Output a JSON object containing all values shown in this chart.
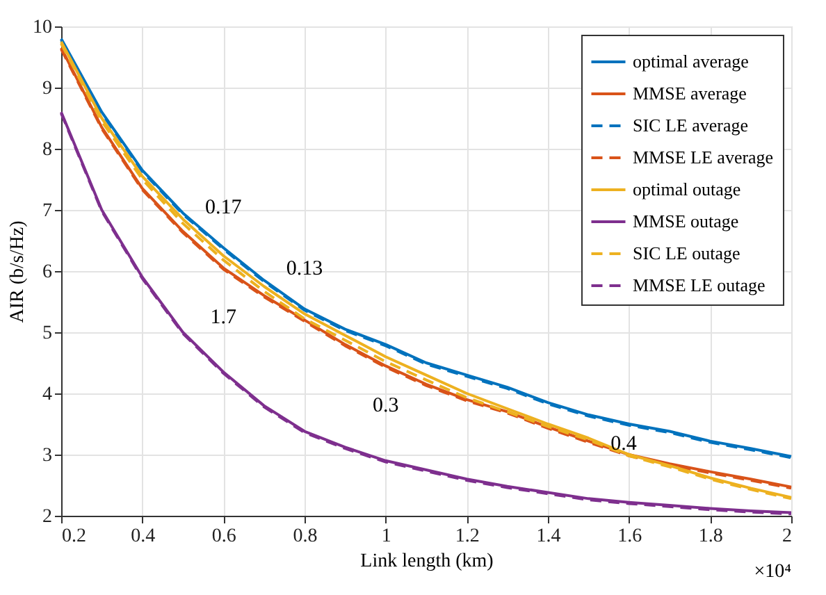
{
  "chart_data": {
    "type": "line",
    "xlabel": "Link length (km)",
    "ylabel": "AIR (b/s/Hz)",
    "x": [
      0.2,
      0.3,
      0.4,
      0.5,
      0.6,
      0.7,
      0.8,
      0.9,
      1.0,
      1.1,
      1.2,
      1.3,
      1.4,
      1.5,
      1.6,
      1.7,
      1.8,
      1.9,
      2.0
    ],
    "xlim": [
      0.2,
      2
    ],
    "xticks": [
      0.2,
      0.4,
      0.6,
      0.8,
      1,
      1.2,
      1.4,
      1.6,
      1.8,
      2
    ],
    "ylim": [
      2,
      10
    ],
    "yticks": [
      2,
      3,
      4,
      5,
      6,
      7,
      8,
      9,
      10
    ],
    "grid": true,
    "legend": "top right",
    "marker": "none",
    "series": [
      {
        "name": "optimal average",
        "color": "#0072bd",
        "line_style": "solid",
        "values": [
          9.8,
          8.6,
          7.65,
          6.95,
          6.38,
          5.85,
          5.38,
          5.05,
          4.8,
          4.5,
          4.3,
          4.1,
          3.85,
          3.65,
          3.5,
          3.38,
          3.22,
          3.1,
          2.97
        ]
      },
      {
        "name": "MMSE average",
        "color": "#d95319",
        "line_style": "solid",
        "values": [
          9.65,
          8.35,
          7.35,
          6.65,
          6.05,
          5.6,
          5.2,
          4.8,
          4.45,
          4.15,
          3.9,
          3.7,
          3.45,
          3.22,
          3.0,
          2.85,
          2.72,
          2.6,
          2.47
        ]
      },
      {
        "name": "SIC LE average",
        "color": "#0072bd",
        "line_style": "dashed",
        "values": [
          9.78,
          8.58,
          7.63,
          6.93,
          6.36,
          5.83,
          5.36,
          5.03,
          4.78,
          4.48,
          4.28,
          4.08,
          3.83,
          3.63,
          3.48,
          3.36,
          3.2,
          3.08,
          2.95
        ]
      },
      {
        "name": "MMSE LE average",
        "color": "#d95319",
        "line_style": "dashed",
        "values": [
          9.63,
          8.33,
          7.33,
          6.63,
          6.03,
          5.58,
          5.18,
          4.78,
          4.43,
          4.13,
          3.88,
          3.68,
          3.43,
          3.2,
          2.98,
          2.83,
          2.7,
          2.58,
          2.45
        ]
      },
      {
        "name": "optimal outage",
        "color": "#edb120",
        "line_style": "solid",
        "values": [
          9.75,
          8.5,
          7.55,
          6.85,
          6.25,
          5.75,
          5.3,
          4.95,
          4.6,
          4.3,
          4.0,
          3.75,
          3.5,
          3.27,
          3.0,
          2.82,
          2.62,
          2.45,
          2.3
        ]
      },
      {
        "name": "MMSE outage",
        "color": "#7e2f8e",
        "line_style": "solid",
        "values": [
          8.6,
          7.0,
          5.9,
          5.0,
          4.35,
          3.8,
          3.38,
          3.12,
          2.9,
          2.75,
          2.6,
          2.48,
          2.38,
          2.28,
          2.22,
          2.17,
          2.12,
          2.08,
          2.05
        ]
      },
      {
        "name": "SIC LE outage",
        "color": "#edb120",
        "line_style": "dashed",
        "values": [
          9.72,
          8.45,
          7.5,
          6.78,
          6.18,
          5.67,
          5.22,
          4.87,
          4.52,
          4.22,
          3.93,
          3.7,
          3.46,
          3.24,
          2.98,
          2.8,
          2.6,
          2.43,
          2.28
        ]
      },
      {
        "name": "MMSE LE outage",
        "color": "#7e2f8e",
        "line_style": "dashed",
        "values": [
          8.58,
          6.98,
          5.88,
          4.98,
          4.33,
          3.78,
          3.36,
          3.1,
          2.88,
          2.73,
          2.58,
          2.46,
          2.36,
          2.26,
          2.2,
          2.15,
          2.1,
          2.06,
          2.03
        ]
      }
    ],
    "annotations": [
      {
        "text": "0.17",
        "x": 0.6,
        "y": 6.38
      },
      {
        "text": "0.13",
        "x": 0.8,
        "y": 5.38
      },
      {
        "text": "1.7",
        "x": 0.6,
        "y": 4.35
      },
      {
        "text": "0.3",
        "x": 1.0,
        "y": 4.45
      },
      {
        "text": "0.4",
        "x": 1.5,
        "y": 3.65
      },
      "×10⁴"
    ]
  }
}
